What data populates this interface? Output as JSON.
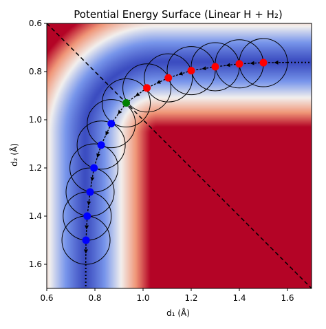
{
  "chart_data": {
    "type": "heatmap",
    "title": "Potential Energy Surface (Linear H + H₂)",
    "xlabel": "d₁ (Å)",
    "ylabel": "d₂ (Å)",
    "xlim": [
      0.6,
      1.7
    ],
    "ylim": [
      0.6,
      1.7
    ],
    "y_axis_inverted": true,
    "x_ticks": [
      0.6,
      0.8,
      1.0,
      1.2,
      1.4,
      1.6
    ],
    "x_tick_labels": [
      "0.6",
      "0.8",
      "1.0",
      "1.2",
      "1.4",
      "1.6"
    ],
    "y_ticks": [
      0.6,
      0.8,
      1.0,
      1.2,
      1.4,
      1.6
    ],
    "y_tick_labels": [
      "0.6",
      "0.8",
      "1.0",
      "1.2",
      "1.4",
      "1.6"
    ],
    "colormap": "coolwarm_r",
    "colors": {
      "high_energy": "#b40426",
      "low_energy": "#3b4cc0",
      "mid": "#f2f0ee",
      "product_points": "#ff0000",
      "reactant_points": "#0000ff",
      "transition_state": "#008000"
    },
    "valley": {
      "asymptote_d1": 0.76,
      "asymptote_d2": 0.76,
      "corner_radius": 0.3
    },
    "dividing_line": {
      "from": [
        0.6,
        0.6
      ],
      "to": [
        1.7,
        1.7
      ],
      "style": "dashed"
    },
    "circle_radius": 0.1,
    "points_product": [
      {
        "d1": 1.5,
        "d2": 0.763
      },
      {
        "d1": 1.4,
        "d2": 0.768
      },
      {
        "d1": 1.3,
        "d2": 0.78
      },
      {
        "d1": 1.2,
        "d2": 0.796
      },
      {
        "d1": 1.105,
        "d2": 0.826
      },
      {
        "d1": 1.016,
        "d2": 0.868
      }
    ],
    "points_transition": [
      {
        "d1": 0.93,
        "d2": 0.93
      }
    ],
    "points_reactant": [
      {
        "d1": 0.868,
        "d2": 1.016
      },
      {
        "d1": 0.826,
        "d2": 1.105
      },
      {
        "d1": 0.796,
        "d2": 1.2
      },
      {
        "d1": 0.78,
        "d2": 1.3
      },
      {
        "d1": 0.768,
        "d2": 1.4
      },
      {
        "d1": 0.763,
        "d2": 1.5
      }
    ],
    "path": [
      {
        "d1": 1.6,
        "d2": 0.762
      },
      {
        "d1": 1.5,
        "d2": 0.763
      },
      {
        "d1": 1.4,
        "d2": 0.768
      },
      {
        "d1": 1.3,
        "d2": 0.78
      },
      {
        "d1": 1.2,
        "d2": 0.796
      },
      {
        "d1": 1.105,
        "d2": 0.826
      },
      {
        "d1": 1.016,
        "d2": 0.868
      },
      {
        "d1": 0.93,
        "d2": 0.93
      },
      {
        "d1": 0.868,
        "d2": 1.016
      },
      {
        "d1": 0.826,
        "d2": 1.105
      },
      {
        "d1": 0.796,
        "d2": 1.2
      },
      {
        "d1": 0.78,
        "d2": 1.3
      },
      {
        "d1": 0.768,
        "d2": 1.4
      },
      {
        "d1": 0.763,
        "d2": 1.5
      },
      {
        "d1": 0.762,
        "d2": 1.6
      }
    ],
    "dotted_extensions": [
      {
        "from": {
          "d1": 1.6,
          "d2": 0.762
        },
        "to": {
          "d1": 1.7,
          "d2": 0.762
        }
      },
      {
        "from": {
          "d1": 0.762,
          "d2": 1.6
        },
        "to": {
          "d1": 0.762,
          "d2": 1.7
        }
      }
    ]
  }
}
